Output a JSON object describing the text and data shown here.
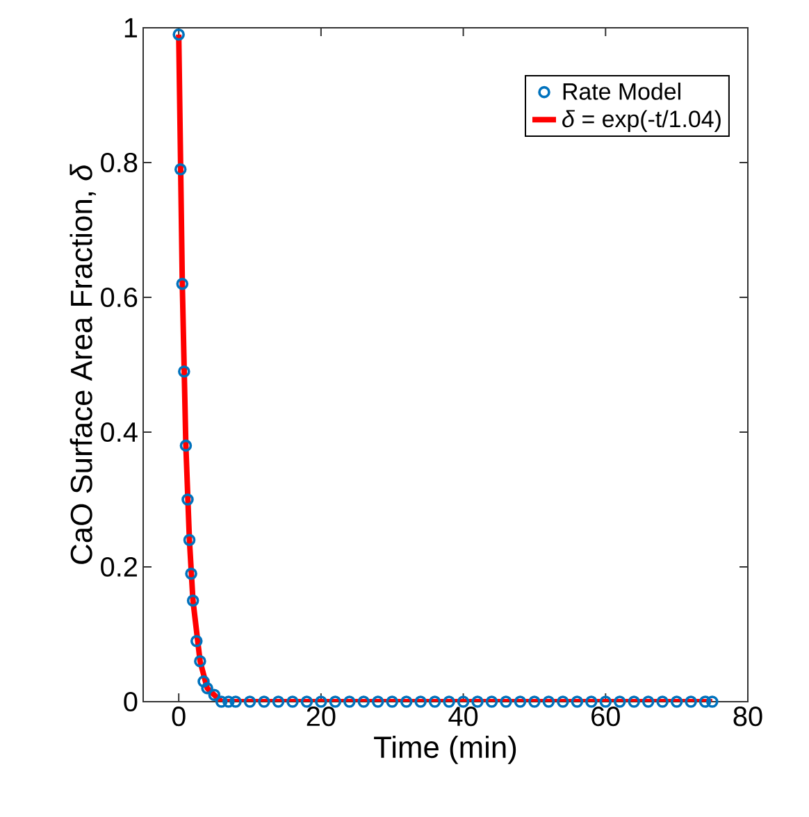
{
  "chart_data": {
    "type": "scatter",
    "xlabel": "Time (min)",
    "ylabel": "CaO Surface Area Fraction, *δ*",
    "xlim": [
      -5,
      80
    ],
    "xticks": [
      0,
      20,
      40,
      60,
      80
    ],
    "ylim": [
      0,
      1
    ],
    "yticks": [
      0,
      0.2,
      0.4,
      0.6,
      0.8,
      1
    ],
    "legend": "top right",
    "grid": false,
    "series": [
      {
        "name": "Rate Model",
        "marker": "circle",
        "color": "#0072bd",
        "x": [
          0,
          0.25,
          0.5,
          0.75,
          1,
          1.25,
          1.5,
          1.75,
          2,
          2.5,
          3,
          3.5,
          4,
          5,
          6,
          7,
          8,
          10,
          12,
          14,
          16,
          18,
          20,
          22,
          24,
          26,
          28,
          30,
          32,
          34,
          36,
          38,
          40,
          42,
          44,
          46,
          48,
          50,
          52,
          54,
          56,
          58,
          60,
          62,
          64,
          66,
          68,
          70,
          72,
          74,
          75
        ],
        "values": [
          0.99,
          0.79,
          0.62,
          0.49,
          0.38,
          0.3,
          0.24,
          0.19,
          0.15,
          0.09,
          0.06,
          0.03,
          0.02,
          0.01,
          0,
          0,
          0,
          0,
          0,
          0,
          0,
          0,
          0,
          0,
          0,
          0,
          0,
          0,
          0,
          0,
          0,
          0,
          0,
          0,
          0,
          0,
          0,
          0,
          0,
          0,
          0,
          0,
          0,
          0,
          0,
          0,
          0,
          0,
          0,
          0,
          0
        ]
      },
      {
        "name": "*δ* = exp(-t/1.04)",
        "type": "line",
        "line_style": "solid",
        "color": "#ff0000",
        "x": [
          0,
          0.5,
          1,
          1.5,
          2,
          3,
          4,
          5,
          6,
          8,
          75
        ],
        "values": [
          0.99,
          0.62,
          0.38,
          0.24,
          0.15,
          0.06,
          0.02,
          0.01,
          0,
          0,
          0
        ]
      }
    ]
  }
}
